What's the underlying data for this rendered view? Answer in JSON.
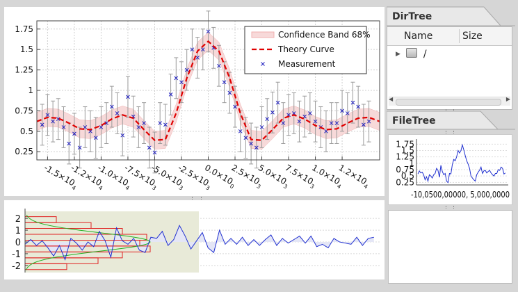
{
  "main_plot": {
    "legend": {
      "confidence_band": "Confidence Band 68%",
      "theory_curve": "Theory Curve",
      "measurement": "Measurement"
    },
    "colors": {
      "band": "#f7d9d9",
      "theory": "#e00000",
      "measurement": "#2020c0",
      "errorbar": "#9a9a9a"
    }
  },
  "chart_data": [
    {
      "type": "scatter",
      "xlim": [
        -16000,
        16000
      ],
      "ylim": [
        0.15,
        1.85
      ],
      "grid": true,
      "legend_position": "top-right",
      "yticks": [
        {
          "value": 0.25,
          "label": "0.25"
        },
        {
          "value": 0.5,
          "label": "0.5"
        },
        {
          "value": 0.75,
          "label": "0.75"
        },
        {
          "value": 1,
          "label": "1"
        },
        {
          "value": 1.25,
          "label": "1.25"
        },
        {
          "value": 1.5,
          "label": "1.5"
        },
        {
          "value": 1.75,
          "label": "1.75"
        }
      ],
      "xticks": [
        {
          "value": -15000,
          "label": "-1.5×10",
          "exp": "4"
        },
        {
          "value": -12500,
          "label": "-1.2×10",
          "exp": "4"
        },
        {
          "value": -10000,
          "label": "-1.0×10",
          "exp": "4"
        },
        {
          "value": -7500,
          "label": "-7.5×10",
          "exp": "3"
        },
        {
          "value": -5000,
          "label": "-5.0×10",
          "exp": "3"
        },
        {
          "value": -2500,
          "label": "-2.5×10",
          "exp": "3"
        },
        {
          "value": 0,
          "label": "0.0×10",
          "exp": "0"
        },
        {
          "value": 2500,
          "label": "2.5×10",
          "exp": "3"
        },
        {
          "value": 5000,
          "label": "5.0×10",
          "exp": "3"
        },
        {
          "value": 7500,
          "label": "7.5×10",
          "exp": "3"
        },
        {
          "value": 10000,
          "label": "1.0×10",
          "exp": "4"
        },
        {
          "value": 12500,
          "label": "1.2×10",
          "exp": "4"
        }
      ],
      "series": [
        {
          "name": "Theory Curve",
          "kind": "line",
          "x": [
            -16000,
            -15000,
            -14000,
            -13000,
            -12000,
            -11000,
            -10000,
            -9000,
            -8000,
            -7000,
            -6000,
            -5000,
            -4000,
            -3000,
            -2000,
            -1000,
            0,
            1000,
            2000,
            3000,
            4000,
            5000,
            6000,
            7000,
            8000,
            9000,
            10000,
            11000,
            12000,
            13000,
            14000,
            15000,
            16000
          ],
          "y": [
            0.62,
            0.67,
            0.66,
            0.6,
            0.53,
            0.52,
            0.57,
            0.65,
            0.7,
            0.66,
            0.52,
            0.39,
            0.4,
            0.72,
            1.15,
            1.48,
            1.6,
            1.48,
            1.15,
            0.72,
            0.4,
            0.39,
            0.52,
            0.66,
            0.7,
            0.65,
            0.57,
            0.52,
            0.53,
            0.6,
            0.66,
            0.67,
            0.62
          ]
        },
        {
          "name": "Measurement",
          "kind": "points",
          "x": [
            -15500,
            -15000,
            -14500,
            -14000,
            -13500,
            -13000,
            -12500,
            -12000,
            -11500,
            -11000,
            -10500,
            -10000,
            -9500,
            -9000,
            -8500,
            -8000,
            -7500,
            -7000,
            -6500,
            -6000,
            -5500,
            -5000,
            -4500,
            -4000,
            -3500,
            -3000,
            -2500,
            -2000,
            -1500,
            -1000,
            -500,
            0,
            500,
            1000,
            1500,
            2000,
            2500,
            3000,
            3500,
            4000,
            4500,
            5000,
            5500,
            6000,
            6500,
            7000,
            7500,
            8000,
            8500,
            9000,
            9500,
            10000,
            10500,
            11000,
            11500,
            12000,
            12500,
            13000,
            13500,
            14000,
            14500,
            15000
          ],
          "y": [
            0.58,
            0.7,
            0.62,
            0.65,
            0.55,
            0.35,
            0.47,
            0.3,
            0.55,
            0.5,
            0.42,
            0.55,
            0.6,
            0.8,
            0.72,
            0.45,
            0.92,
            0.68,
            0.55,
            0.6,
            0.3,
            0.24,
            0.6,
            0.58,
            0.95,
            1.15,
            1.1,
            1.25,
            1.5,
            1.4,
            1.5,
            1.72,
            1.52,
            1.3,
            1.1,
            0.97,
            0.8,
            0.5,
            0.42,
            0.35,
            0.3,
            0.55,
            0.65,
            0.73,
            0.85,
            0.6,
            0.7,
            0.72,
            0.62,
            0.68,
            0.72,
            0.62,
            0.55,
            0.5,
            0.6,
            0.6,
            0.75,
            0.72,
            0.85,
            0.8,
            0.58,
            0.62
          ]
        }
      ]
    },
    {
      "type": "line",
      "xlim": [
        -15500,
        15500
      ],
      "ylim": [
        -2.6,
        2.6
      ],
      "yticks": [
        {
          "value": -2,
          "label": "-2"
        },
        {
          "value": -1,
          "label": "-1"
        },
        {
          "value": 0,
          "label": "0"
        },
        {
          "value": 1,
          "label": "1"
        },
        {
          "value": 2,
          "label": "2"
        }
      ],
      "series": [
        {
          "name": "",
          "kind": "line",
          "x": [
            -15500,
            -15000,
            -14500,
            -14000,
            -13500,
            -13000,
            -12500,
            -12000,
            -11500,
            -11000,
            -10500,
            -10000,
            -9500,
            -9000,
            -8500,
            -8000,
            -7500,
            -7000,
            -6500,
            -6000,
            -5500,
            -5000,
            -4500,
            -4000,
            -3500,
            -3000,
            -2500,
            -2000,
            -1500,
            -1000,
            -500,
            0,
            500,
            1000,
            1500,
            2000,
            2500,
            3000,
            3500,
            4000,
            4500,
            5000,
            5500,
            6000,
            6500,
            7000,
            7500,
            8000,
            8500,
            9000,
            9500,
            10000,
            10500,
            11000,
            11500,
            12000,
            12500,
            13000,
            13500,
            14000,
            14500,
            15000
          ],
          "y": [
            -0.2,
            0.2,
            -0.3,
            0.1,
            -0.5,
            -1.2,
            -0.3,
            -1.5,
            0.3,
            -0.1,
            -0.7,
            0.0,
            -0.4,
            0.9,
            0.1,
            -1.3,
            1.2,
            0.1,
            -0.2,
            0.3,
            -0.7,
            -0.9,
            0.4,
            0.3,
            0.9,
            -0.3,
            0.2,
            1.4,
            0.5,
            -0.6,
            0.1,
            0.8,
            -0.5,
            -0.9,
            1.0,
            -0.2,
            0.3,
            -0.2,
            0.4,
            -0.3,
            0.2,
            -0.3,
            0.2,
            0.6,
            -0.3,
            0.3,
            -0.1,
            0.2,
            0.5,
            -0.1,
            0.5,
            -0.4,
            -0.2,
            -0.5,
            0.3,
            0.0,
            -0.1,
            -0.2,
            0.4,
            -0.3,
            0.3,
            0.4
          ]
        }
      ]
    },
    {
      "type": "line",
      "xlim": [
        -16000,
        16000
      ],
      "ylim": [
        0.15,
        1.95
      ],
      "yticks": [
        {
          "value": 0.25,
          "label": "0.25"
        },
        {
          "value": 0.5,
          "label": "0.5"
        },
        {
          "value": 0.75,
          "label": "0.75"
        },
        {
          "value": 1,
          "label": "1"
        },
        {
          "value": 1.25,
          "label": "1.25"
        },
        {
          "value": 1.5,
          "label": "1.5"
        },
        {
          "value": 1.75,
          "label": "1.75"
        }
      ],
      "xtick_text": "-10,0500,00000, 5,000,0000",
      "series": [
        {
          "name": "",
          "kind": "line",
          "x": [
            -15500,
            -15000,
            -14500,
            -14000,
            -13500,
            -13000,
            -12500,
            -12000,
            -11500,
            -11000,
            -10500,
            -10000,
            -9500,
            -9000,
            -8500,
            -8000,
            -7500,
            -7000,
            -6500,
            -6000,
            -5500,
            -5000,
            -4500,
            -4000,
            -3500,
            -3000,
            -2500,
            -2000,
            -1500,
            -1000,
            -500,
            0,
            500,
            1000,
            1500,
            2000,
            2500,
            3000,
            3500,
            4000,
            4500,
            5000,
            5500,
            6000,
            6500,
            7000,
            7500,
            8000,
            8500,
            9000,
            9500,
            10000,
            10500,
            11000,
            11500,
            12000,
            12500,
            13000,
            13500,
            14000,
            14500,
            15000
          ],
          "y": [
            0.58,
            0.7,
            0.62,
            0.65,
            0.55,
            0.35,
            0.47,
            0.3,
            0.55,
            0.5,
            0.42,
            0.55,
            0.6,
            0.8,
            0.72,
            0.45,
            0.92,
            0.68,
            0.55,
            0.6,
            0.3,
            0.24,
            0.6,
            0.58,
            0.95,
            1.15,
            1.1,
            1.25,
            1.5,
            1.4,
            1.5,
            1.72,
            1.52,
            1.3,
            1.1,
            0.97,
            0.8,
            0.5,
            0.42,
            0.35,
            0.3,
            0.55,
            0.65,
            0.73,
            0.85,
            0.6,
            0.7,
            0.72,
            0.62,
            0.68,
            0.72,
            0.62,
            0.55,
            0.5,
            0.6,
            0.6,
            0.75,
            0.72,
            0.85,
            0.8,
            0.58,
            0.62
          ]
        }
      ]
    }
  ],
  "sidebar": {
    "dirtree": {
      "title": "DirTree",
      "columns": [
        "Name",
        "Size"
      ],
      "rows": [
        {
          "name": "/",
          "icon": "drive-icon"
        }
      ]
    },
    "filetree": {
      "title": "FileTree"
    }
  }
}
